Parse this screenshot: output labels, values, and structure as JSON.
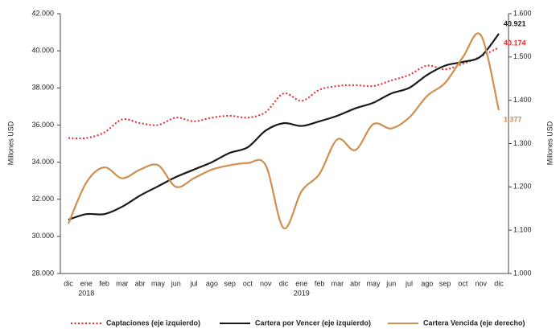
{
  "chart_data": {
    "type": "line",
    "y_label": "Millones USD",
    "y2_label": "Millones USD",
    "categories": [
      "dic",
      "ene",
      "feb",
      "mar",
      "abr",
      "may",
      "jun",
      "jul",
      "ago",
      "sep",
      "oct",
      "nov",
      "dic",
      "ene",
      "feb",
      "mar",
      "abr",
      "may",
      "jun",
      "jul",
      "ago",
      "sep",
      "oct",
      "nov",
      "dic"
    ],
    "years": [
      "2018",
      "2019"
    ],
    "ylim": [
      28000,
      42000
    ],
    "yticks": [
      {
        "value": 28000,
        "label": "28.000"
      },
      {
        "value": 30000,
        "label": "30.000"
      },
      {
        "value": 32000,
        "label": "32.000"
      },
      {
        "value": 34000,
        "label": "34.000"
      },
      {
        "value": 36000,
        "label": "36.000"
      },
      {
        "value": 38000,
        "label": "38.000"
      },
      {
        "value": 40000,
        "label": "40.000"
      },
      {
        "value": 42000,
        "label": "42.000"
      }
    ],
    "y2lim": [
      1000,
      1600
    ],
    "y2ticks": [
      {
        "value": 1000,
        "label": "1.000"
      },
      {
        "value": 1100,
        "label": "1.100"
      },
      {
        "value": 1200,
        "label": "1.200"
      },
      {
        "value": 1300,
        "label": "1.300"
      },
      {
        "value": 1400,
        "label": "1.400"
      },
      {
        "value": 1500,
        "label": "1.500"
      },
      {
        "value": 1600,
        "label": "1.600"
      }
    ],
    "series": [
      {
        "name": "Captaciones (eje izquierdo)",
        "color": "#e8262a",
        "line_style": "dotted",
        "values": [
          35300,
          35300,
          35600,
          36300,
          36100,
          36000,
          36400,
          36200,
          36400,
          36500,
          36400,
          36700,
          37700,
          37300,
          37900,
          38100,
          38150,
          38100,
          38400,
          38700,
          39200,
          39000,
          39300,
          39700,
          40174
        ],
        "value_labels": [
          null,
          null,
          null,
          null,
          null,
          null,
          null,
          null,
          null,
          null,
          null,
          null,
          null,
          null,
          null,
          null,
          null,
          null,
          null,
          null,
          null,
          null,
          null,
          null,
          "40.174"
        ]
      },
      {
        "name": "Cartera por Vencer (eje izquierdo)",
        "color": "#1a1a1a",
        "line_style": "solid",
        "values": [
          30900,
          31200,
          31200,
          31600,
          32200,
          32700,
          33200,
          33600,
          34000,
          34500,
          34800,
          35700,
          36100,
          35950,
          36200,
          36500,
          36900,
          37200,
          37700,
          38000,
          38700,
          39200,
          39400,
          39700,
          40921
        ],
        "value_labels": [
          null,
          null,
          null,
          null,
          null,
          null,
          null,
          null,
          null,
          null,
          null,
          null,
          null,
          null,
          null,
          null,
          null,
          null,
          null,
          null,
          null,
          null,
          null,
          null,
          "40.921"
        ]
      },
      {
        "name": "Cartera Vencida (eje derecho)",
        "color": "#d08e4f",
        "line_style": "solid",
        "axis": "y2",
        "values": [
          1115,
          1210,
          1245,
          1220,
          1240,
          1250,
          1200,
          1220,
          1240,
          1250,
          1255,
          1250,
          1105,
          1190,
          1230,
          1310,
          1285,
          1345,
          1335,
          1360,
          1410,
          1440,
          1500,
          1550,
          1377
        ],
        "value_labels": [
          null,
          null,
          null,
          null,
          null,
          null,
          null,
          null,
          null,
          null,
          null,
          null,
          null,
          null,
          null,
          null,
          null,
          null,
          null,
          null,
          null,
          null,
          null,
          null,
          "1.377"
        ]
      }
    ]
  }
}
